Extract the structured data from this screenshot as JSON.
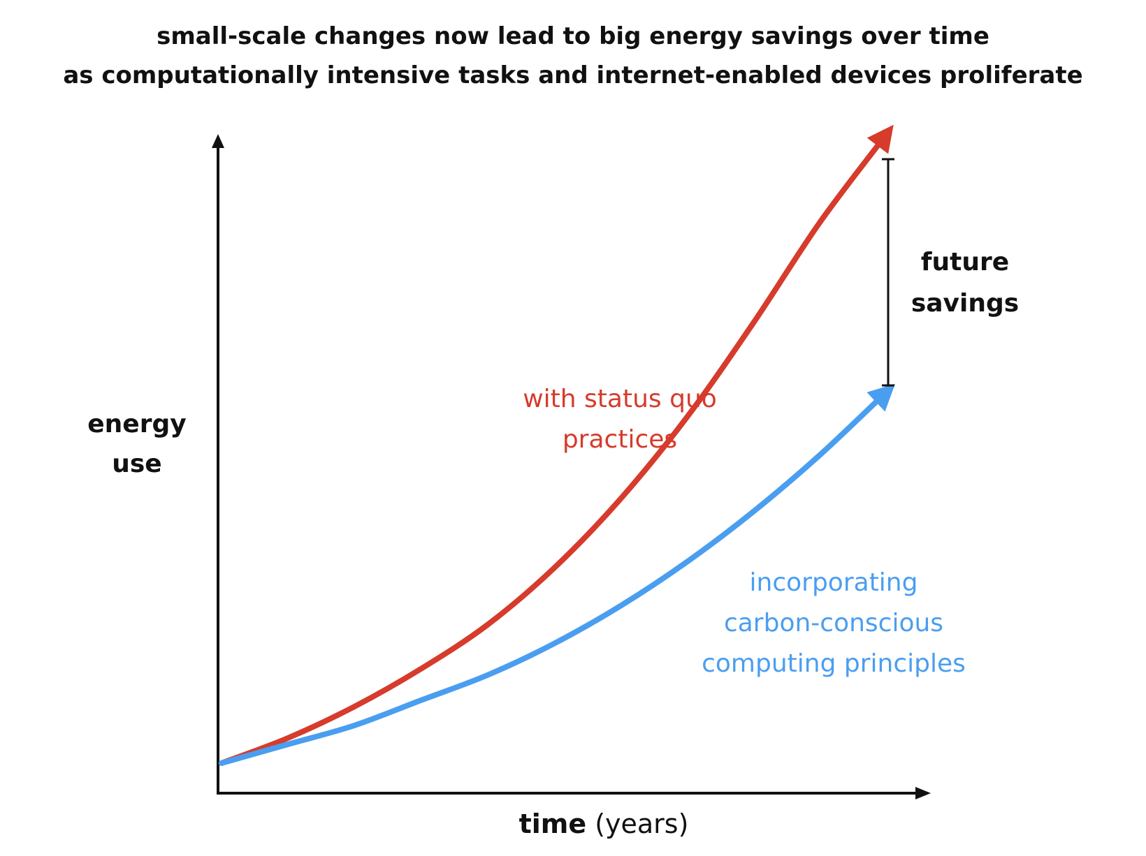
{
  "title": {
    "line1": "small-scale changes now lead to big energy savings over time",
    "line2": "as computationally intensive tasks and internet-enabled devices proliferate"
  },
  "chart_data": {
    "type": "line",
    "title": "small-scale changes now lead to big energy savings over time as computationally intensive tasks and internet-enabled devices proliferate",
    "xlabel": "time (years)",
    "ylabel": "energy use",
    "axes": {
      "ticks": false,
      "grid": false,
      "arrowheads": true
    },
    "x": [
      0,
      0.1,
      0.2,
      0.3,
      0.4,
      0.5,
      0.6,
      0.7,
      0.8,
      0.9,
      1.0
    ],
    "series": [
      {
        "name": "with status quo practices",
        "color": "#d63b2c",
        "values": [
          0.0,
          0.04,
          0.09,
          0.15,
          0.22,
          0.31,
          0.42,
          0.55,
          0.7,
          0.86,
          1.0
        ],
        "label_lines": [
          "with status quo",
          "practices"
        ]
      },
      {
        "name": "incorporating carbon-conscious computing principles",
        "color": "#4a9ef0",
        "values": [
          0.0,
          0.03,
          0.06,
          0.1,
          0.14,
          0.19,
          0.25,
          0.32,
          0.4,
          0.49,
          0.59
        ],
        "label_lines": [
          "incorporating",
          "carbon-conscious",
          "computing principles"
        ]
      }
    ],
    "annotations": [
      {
        "type": "bracket",
        "text_lines": [
          "future",
          "savings"
        ],
        "between": [
          "with status quo practices",
          "incorporating carbon-conscious computing principles"
        ],
        "at_x": 1.0
      }
    ]
  },
  "labels": {
    "ylabel_line1": "energy",
    "ylabel_line2": "use",
    "xlabel_strong": "time",
    "xlabel_rest": " (years)",
    "savings_line1": "future",
    "savings_line2": "savings"
  }
}
